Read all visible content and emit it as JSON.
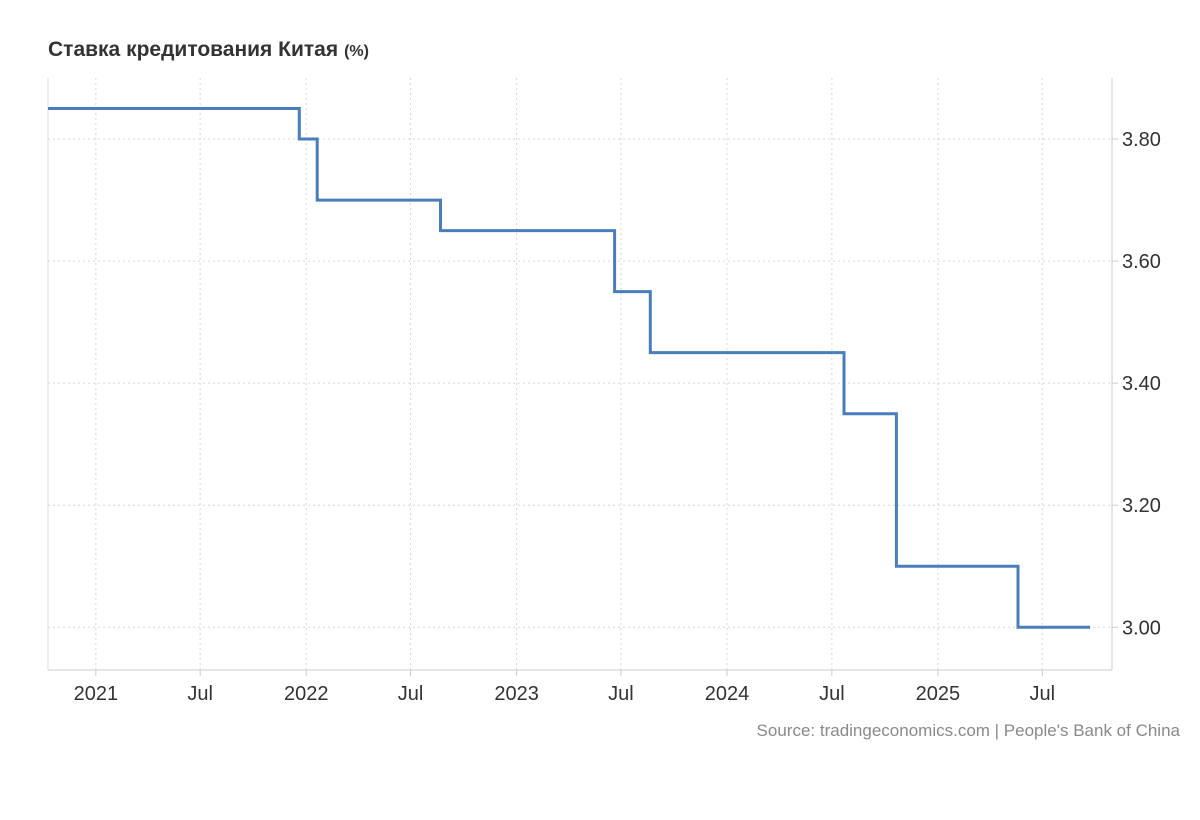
{
  "chart_data": {
    "type": "line",
    "title": "Ставка кредитования Китая",
    "unit": "(%)",
    "source": "Source: tradingeconomics.com | People's Bank of China",
    "x_ticks": [
      {
        "label": "2021",
        "date": "2021-01-01"
      },
      {
        "label": "Jul",
        "date": "2021-07-01"
      },
      {
        "label": "2022",
        "date": "2022-01-01"
      },
      {
        "label": "Jul",
        "date": "2022-07-01"
      },
      {
        "label": "2023",
        "date": "2023-01-01"
      },
      {
        "label": "Jul",
        "date": "2023-07-01"
      },
      {
        "label": "2024",
        "date": "2024-01-01"
      },
      {
        "label": "Jul",
        "date": "2024-07-01"
      },
      {
        "label": "2025",
        "date": "2025-01-01"
      },
      {
        "label": "Jul",
        "date": "2025-07-01"
      }
    ],
    "y_ticks": [
      "3.00",
      "3.20",
      "3.40",
      "3.60",
      "3.80"
    ],
    "ylim": [
      2.93,
      3.9
    ],
    "xlim": [
      "2020-10-10",
      "2025-10-30"
    ],
    "y_axis_position": "right",
    "grid": true,
    "step": true,
    "series": [
      {
        "color": "#4a7ebb",
        "points": [
          {
            "date": "2020-10-10",
            "value": 3.85
          },
          {
            "date": "2021-12-20",
            "value": 3.8
          },
          {
            "date": "2022-01-20",
            "value": 3.7
          },
          {
            "date": "2022-08-22",
            "value": 3.65
          },
          {
            "date": "2023-06-20",
            "value": 3.55
          },
          {
            "date": "2023-08-21",
            "value": 3.45
          },
          {
            "date": "2024-07-22",
            "value": 3.35
          },
          {
            "date": "2024-10-21",
            "value": 3.1
          },
          {
            "date": "2025-05-20",
            "value": 3.0
          },
          {
            "date": "2025-09-22",
            "value": 3.0
          }
        ]
      }
    ]
  }
}
